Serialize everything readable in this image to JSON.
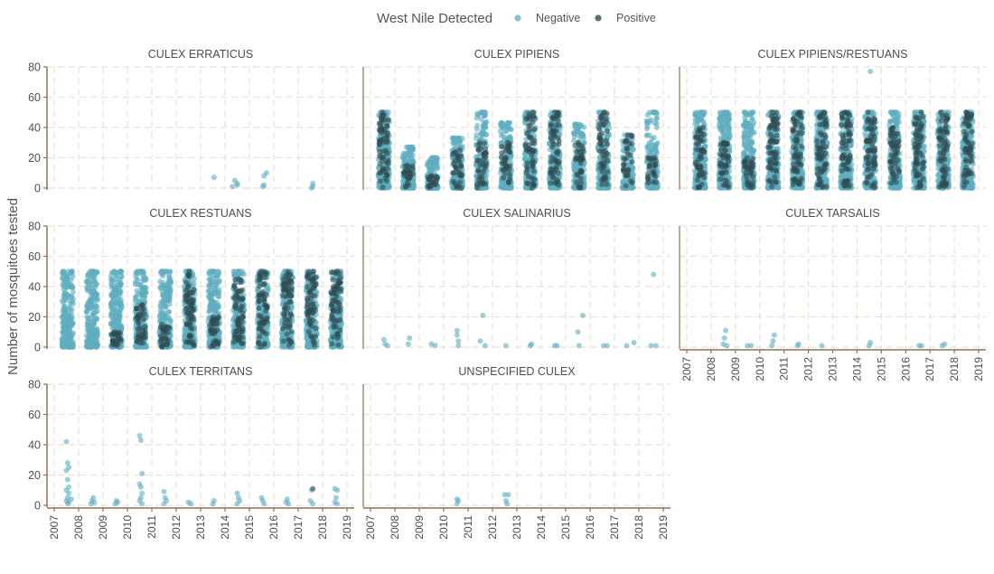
{
  "chart_data": {
    "type": "scatter",
    "ylabel": "Number of mosquitoes tested",
    "xlabel": "",
    "xlim": [
      2007,
      2019
    ],
    "ylim": [
      0,
      80
    ],
    "xticks": [
      "2007",
      "2008",
      "2009",
      "2010",
      "2011",
      "2012",
      "2013",
      "2014",
      "2015",
      "2016",
      "2017",
      "2018",
      "2019"
    ],
    "yticks": [
      "0",
      "20",
      "40",
      "60",
      "80"
    ],
    "grid": true,
    "legend": {
      "title": "West Nile Detected",
      "position": "top",
      "entries": [
        {
          "label": "Negative",
          "color": "#5fadc0"
        },
        {
          "label": "Positive",
          "color": "#2e4c52"
        }
      ]
    },
    "facets": [
      {
        "title": "CULEX ERRATICUS",
        "negative": [
          [
            2013.55,
            7
          ],
          [
            2014.3,
            1
          ],
          [
            2014.4,
            5
          ],
          [
            2014.5,
            2
          ],
          [
            2014.5,
            3
          ],
          [
            2015.55,
            1
          ],
          [
            2015.6,
            2
          ],
          [
            2015.6,
            8
          ],
          [
            2015.7,
            10
          ],
          [
            2017.55,
            0
          ],
          [
            2017.6,
            3
          ],
          [
            2017.6,
            1
          ]
        ],
        "positive": []
      },
      {
        "title": "CULEX PIPIENS",
        "clusters": [
          {
            "x": 2007.55,
            "maxN": 50,
            "maxP": 50,
            "dense": 1.0
          },
          {
            "x": 2008.55,
            "maxN": 27,
            "maxP": 15,
            "dense": 0.7
          },
          {
            "x": 2009.55,
            "maxN": 20,
            "maxP": 8,
            "dense": 0.5
          },
          {
            "x": 2010.55,
            "maxN": 33,
            "maxP": 25,
            "dense": 0.7
          },
          {
            "x": 2011.55,
            "maxN": 50,
            "maxP": 30,
            "dense": 0.75
          },
          {
            "x": 2012.55,
            "maxN": 43,
            "maxP": 30,
            "dense": 0.65
          },
          {
            "x": 2013.55,
            "maxN": 50,
            "maxP": 50,
            "dense": 0.8
          },
          {
            "x": 2014.55,
            "maxN": 50,
            "maxP": 50,
            "dense": 0.9
          },
          {
            "x": 2015.55,
            "maxN": 42,
            "maxP": 30,
            "dense": 0.7
          },
          {
            "x": 2016.55,
            "maxN": 50,
            "maxP": 50,
            "dense": 0.75
          },
          {
            "x": 2017.55,
            "maxN": 35,
            "maxP": 35,
            "dense": 0.4
          },
          {
            "x": 2018.55,
            "maxN": 50,
            "maxP": 20,
            "dense": 0.5
          }
        ]
      },
      {
        "title": "CULEX PIPIENS/RESTUANS",
        "clusters": [
          {
            "x": 2007.55,
            "maxN": 50,
            "maxP": 40,
            "dense": 1.0
          },
          {
            "x": 2008.55,
            "maxN": 50,
            "maxP": 30,
            "dense": 1.0
          },
          {
            "x": 2009.55,
            "maxN": 50,
            "maxP": 20,
            "dense": 1.0
          },
          {
            "x": 2010.55,
            "maxN": 50,
            "maxP": 50,
            "dense": 1.0
          },
          {
            "x": 2011.55,
            "maxN": 50,
            "maxP": 50,
            "dense": 1.0
          },
          {
            "x": 2012.55,
            "maxN": 50,
            "maxP": 50,
            "dense": 1.0
          },
          {
            "x": 2013.55,
            "maxN": 50,
            "maxP": 50,
            "dense": 1.0
          },
          {
            "x": 2014.55,
            "maxN": 50,
            "maxP": 50,
            "dense": 1.0
          },
          {
            "x": 2015.55,
            "maxN": 50,
            "maxP": 40,
            "dense": 1.0
          },
          {
            "x": 2016.55,
            "maxN": 50,
            "maxP": 50,
            "dense": 1.0
          },
          {
            "x": 2017.55,
            "maxN": 50,
            "maxP": 50,
            "dense": 1.0
          },
          {
            "x": 2018.55,
            "maxN": 50,
            "maxP": 50,
            "dense": 1.0
          }
        ],
        "extra_negative": [
          [
            2014.55,
            77
          ]
        ]
      },
      {
        "title": "CULEX RESTUANS",
        "clusters": [
          {
            "x": 2007.55,
            "maxN": 50,
            "maxP": 0,
            "dense": 0.9
          },
          {
            "x": 2008.55,
            "maxN": 50,
            "maxP": 0,
            "dense": 0.9
          },
          {
            "x": 2009.55,
            "maxN": 50,
            "maxP": 10,
            "dense": 0.95
          },
          {
            "x": 2010.55,
            "maxN": 50,
            "maxP": 28,
            "dense": 0.95
          },
          {
            "x": 2011.55,
            "maxN": 50,
            "maxP": 15,
            "dense": 0.95
          },
          {
            "x": 2012.55,
            "maxN": 50,
            "maxP": 50,
            "dense": 1.0
          },
          {
            "x": 2013.55,
            "maxN": 50,
            "maxP": 20,
            "dense": 1.0
          },
          {
            "x": 2014.55,
            "maxN": 50,
            "maxP": 45,
            "dense": 1.0
          },
          {
            "x": 2015.55,
            "maxN": 50,
            "maxP": 50,
            "dense": 1.0
          },
          {
            "x": 2016.55,
            "maxN": 50,
            "maxP": 50,
            "dense": 1.0
          },
          {
            "x": 2017.55,
            "maxN": 50,
            "maxP": 50,
            "dense": 1.0
          },
          {
            "x": 2018.55,
            "maxN": 50,
            "maxP": 50,
            "dense": 1.0
          }
        ]
      },
      {
        "title": "CULEX SALINARIUS",
        "negative": [
          [
            2007.55,
            5
          ],
          [
            2007.6,
            2
          ],
          [
            2007.7,
            1
          ],
          [
            2008.55,
            2
          ],
          [
            2008.6,
            6
          ],
          [
            2009.5,
            2
          ],
          [
            2009.65,
            1
          ],
          [
            2010.55,
            11
          ],
          [
            2010.55,
            8
          ],
          [
            2010.6,
            4
          ],
          [
            2010.6,
            1
          ],
          [
            2011.5,
            4
          ],
          [
            2011.6,
            21
          ],
          [
            2011.7,
            1
          ],
          [
            2012.55,
            1
          ],
          [
            2013.55,
            1
          ],
          [
            2013.6,
            2
          ],
          [
            2014.55,
            1
          ],
          [
            2014.65,
            1
          ],
          [
            2015.5,
            10
          ],
          [
            2015.55,
            1
          ],
          [
            2015.7,
            21
          ],
          [
            2016.55,
            1
          ],
          [
            2016.7,
            1
          ],
          [
            2017.5,
            1
          ],
          [
            2017.8,
            3
          ],
          [
            2018.5,
            1
          ],
          [
            2018.6,
            48
          ],
          [
            2018.7,
            1
          ]
        ],
        "positive": []
      },
      {
        "title": "CULEX TARSALIS",
        "negative": [
          [
            2008.5,
            2
          ],
          [
            2008.55,
            6
          ],
          [
            2008.6,
            11
          ],
          [
            2008.65,
            1
          ],
          [
            2009.5,
            1
          ],
          [
            2009.65,
            1
          ],
          [
            2010.5,
            1
          ],
          [
            2010.55,
            4
          ],
          [
            2010.6,
            8
          ],
          [
            2011.55,
            1
          ],
          [
            2011.6,
            2
          ],
          [
            2012.55,
            1
          ],
          [
            2014.5,
            1
          ],
          [
            2014.55,
            3
          ],
          [
            2016.55,
            1
          ],
          [
            2016.65,
            1
          ],
          [
            2017.5,
            1
          ],
          [
            2017.6,
            2
          ]
        ],
        "positive": []
      },
      {
        "title": "CULEX TERRITANS",
        "negative": [
          [
            2007.5,
            42
          ],
          [
            2007.55,
            28
          ],
          [
            2007.6,
            25
          ],
          [
            2007.5,
            23
          ],
          [
            2007.55,
            17
          ],
          [
            2007.6,
            12
          ],
          [
            2007.5,
            10
          ],
          [
            2007.6,
            8
          ],
          [
            2007.55,
            5
          ],
          [
            2007.5,
            3
          ],
          [
            2007.6,
            2
          ],
          [
            2007.55,
            1
          ],
          [
            2007.7,
            4
          ],
          [
            2008.5,
            1
          ],
          [
            2008.55,
            3
          ],
          [
            2008.6,
            5
          ],
          [
            2008.65,
            2
          ],
          [
            2009.5,
            1
          ],
          [
            2009.55,
            3
          ],
          [
            2009.6,
            2
          ],
          [
            2010.5,
            46
          ],
          [
            2010.55,
            43
          ],
          [
            2010.6,
            21
          ],
          [
            2010.5,
            14
          ],
          [
            2010.55,
            12
          ],
          [
            2010.6,
            8
          ],
          [
            2010.55,
            5
          ],
          [
            2010.5,
            3
          ],
          [
            2010.6,
            1
          ],
          [
            2011.5,
            9
          ],
          [
            2011.55,
            5
          ],
          [
            2011.6,
            3
          ],
          [
            2011.5,
            1
          ],
          [
            2012.5,
            2
          ],
          [
            2012.6,
            1
          ],
          [
            2013.5,
            1
          ],
          [
            2013.55,
            3
          ],
          [
            2014.5,
            8
          ],
          [
            2014.55,
            5
          ],
          [
            2014.6,
            3
          ],
          [
            2014.5,
            1
          ],
          [
            2015.5,
            5
          ],
          [
            2015.55,
            3
          ],
          [
            2015.6,
            1
          ],
          [
            2016.5,
            2
          ],
          [
            2016.55,
            4
          ],
          [
            2016.6,
            1
          ],
          [
            2017.5,
            3
          ],
          [
            2017.55,
            10
          ],
          [
            2017.6,
            1
          ],
          [
            2018.5,
            11
          ],
          [
            2018.6,
            10
          ],
          [
            2018.55,
            5
          ],
          [
            2018.5,
            2
          ],
          [
            2018.6,
            1
          ]
        ],
        "positive": [
          [
            2017.6,
            11
          ]
        ]
      },
      {
        "title": "UNSPECIFIED CULEX",
        "negative": [
          [
            2010.55,
            1
          ],
          [
            2010.6,
            3
          ],
          [
            2010.55,
            4
          ],
          [
            2012.5,
            7
          ],
          [
            2012.55,
            3
          ],
          [
            2012.6,
            1
          ],
          [
            2012.65,
            7
          ]
        ],
        "positive": []
      }
    ]
  }
}
